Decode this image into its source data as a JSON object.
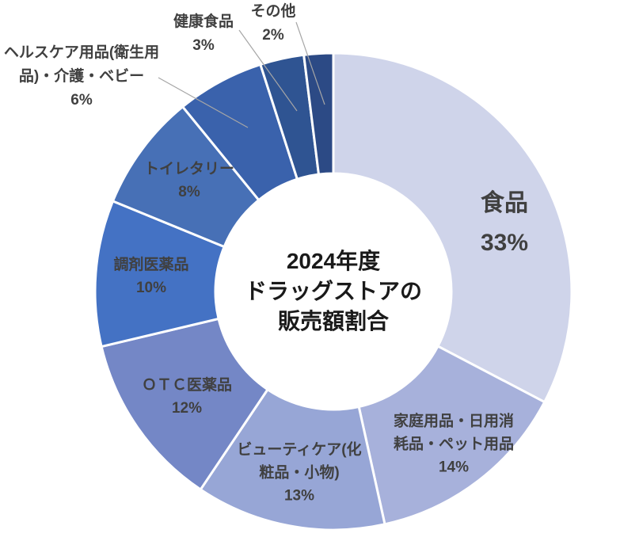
{
  "chart_data": {
    "type": "pie",
    "subtype": "doughnut",
    "title": "2024年度 ドラッグストアの販売額割合",
    "title_lines": [
      "2024年度",
      "ドラッグストアの",
      "販売額割合"
    ],
    "unit": "%",
    "legend_position": "none",
    "hole_ratio": 0.5,
    "title_color": "#1a1a1a",
    "label_color": "#404040",
    "leader_line_color": "#A6A6A6",
    "separator_color": "#FFFFFF",
    "categories": [
      "食品",
      "家庭用品・日用消耗品・ペット用品",
      "ビューティケア(化粧品・小物)",
      "ＯＴＣ医薬品",
      "調剤医薬品",
      "トイレタリー",
      "ヘルスケア用品(衛生用品)・介護・ベビー",
      "健康食品",
      "その他"
    ],
    "values": [
      33,
      14,
      13,
      12,
      10,
      8,
      6,
      3,
      2
    ],
    "segments": [
      {
        "label": "食品",
        "value": 33,
        "pct": "33%",
        "color": "#CFD4EA",
        "label_lines": [
          "食品",
          "33%"
        ],
        "label_placement": "inside"
      },
      {
        "label": "家庭用品・日用消耗品・ペット用品",
        "value": 14,
        "pct": "14%",
        "color": "#A7B1DB",
        "label_lines": [
          "家庭用品・日用消",
          "耗品・ペット用品",
          "14%"
        ],
        "label_placement": "inside"
      },
      {
        "label": "ビューティケア(化粧品・小物)",
        "value": 13,
        "pct": "13%",
        "color": "#97A6D6",
        "label_lines": [
          "ビューティケア(化",
          "粧品・小物)",
          "13%"
        ],
        "label_placement": "inside"
      },
      {
        "label": "ＯＴＣ医薬品",
        "value": 12,
        "pct": "12%",
        "color": "#7487C6",
        "label_lines": [
          "ＯＴＣ医薬品",
          "12%"
        ],
        "label_placement": "inside"
      },
      {
        "label": "調剤医薬品",
        "value": 10,
        "pct": "10%",
        "color": "#4472C4",
        "label_lines": [
          "調剤医薬品",
          "10%"
        ],
        "label_placement": "inside"
      },
      {
        "label": "トイレタリー",
        "value": 8,
        "pct": "8%",
        "color": "#4770B6",
        "label_lines": [
          "トイレタリー",
          "8%"
        ],
        "label_placement": "inside"
      },
      {
        "label": "ヘルスケア用品(衛生用品)・介護・ベビー",
        "value": 6,
        "pct": "6%",
        "color": "#3A62AC",
        "label_lines": [
          "ヘルスケア用品(衛生用",
          "品)・介護・ベビー",
          "6%"
        ],
        "label_placement": "outside"
      },
      {
        "label": "健康食品",
        "value": 3,
        "pct": "3%",
        "color": "#2F5492",
        "label_lines": [
          "健康食品",
          "3%"
        ],
        "label_placement": "outside"
      },
      {
        "label": "その他",
        "value": 2,
        "pct": "2%",
        "color": "#2C4A85",
        "label_lines": [
          "その他",
          "2%"
        ],
        "label_placement": "outside"
      }
    ]
  }
}
